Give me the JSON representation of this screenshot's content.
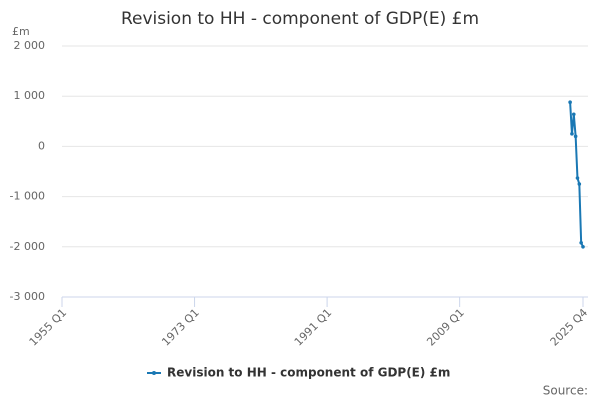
{
  "chart_data": {
    "type": "line",
    "title": "Revision to HH - component of GDP(E) £m",
    "y_axis_label": "£m",
    "x": [
      2024,
      2024.25,
      2024.5,
      2024.75,
      2025,
      2025.25,
      2025.5,
      2025.75
    ],
    "series": [
      {
        "name": "Revision to HH - component of GDP(E) £m",
        "color": "#1a78b4",
        "values": [
          880,
          250,
          640,
          200,
          -630,
          -750,
          -1920,
          -2000
        ]
      }
    ],
    "xlim": [
      1955,
      2025.75
    ],
    "xticks": [
      {
        "value": 1955,
        "label": "1955 Q1"
      },
      {
        "value": 1973,
        "label": "1973 Q1"
      },
      {
        "value": 1991,
        "label": "1991 Q1"
      },
      {
        "value": 2009,
        "label": "2009 Q1"
      },
      {
        "value": 2025.75,
        "label": "2025 Q4"
      }
    ],
    "ylim": [
      -3000,
      2000
    ],
    "yticks": [
      {
        "value": -3000,
        "label": "-3 000"
      },
      {
        "value": -2000,
        "label": "-2 000"
      },
      {
        "value": -1000,
        "label": "-1 000"
      },
      0,
      {
        "value": 1000,
        "label": "1 000"
      },
      {
        "value": 2000,
        "label": "2 000"
      }
    ],
    "grid": true,
    "legend": "bottom",
    "source": "Source:"
  }
}
